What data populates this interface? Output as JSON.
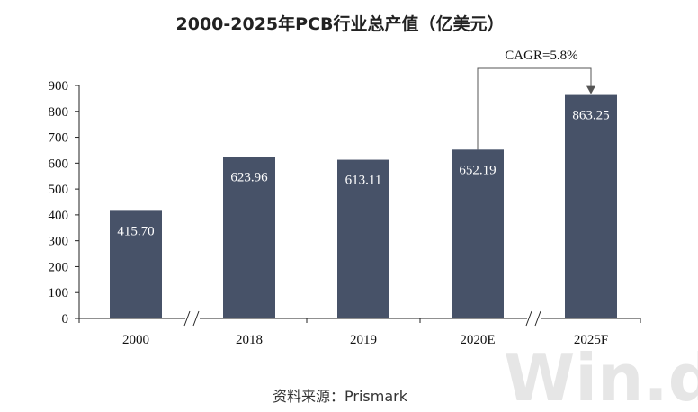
{
  "chart_data": {
    "type": "bar",
    "title": "2000-2025年PCB行业总产值（亿美元）",
    "categories": [
      "2000",
      "2018",
      "2019",
      "2020E",
      "2025F"
    ],
    "values": [
      415.7,
      623.96,
      613.11,
      652.19,
      863.25
    ],
    "value_labels": [
      "415.70",
      "623.96",
      "613.11",
      "652.19",
      "863.25"
    ],
    "ylim": [
      0,
      900
    ],
    "yticks": [
      0,
      100,
      200,
      300,
      400,
      500,
      600,
      700,
      800,
      900
    ],
    "bar_color": "#475268",
    "axis_breaks_after": [
      "2000",
      "2020E"
    ],
    "annotation": {
      "text": "CAGR=5.8%",
      "from": "2020E",
      "to": "2025F"
    },
    "grid": false,
    "legend": "none"
  },
  "source": "资料来源：Prismark",
  "watermark": "Win.d"
}
